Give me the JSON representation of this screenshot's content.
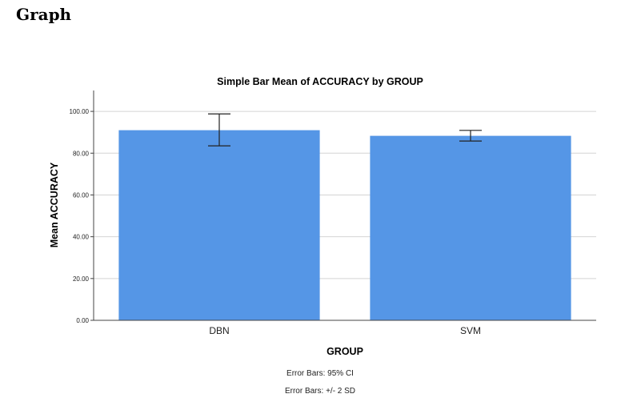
{
  "page": {
    "heading": "Graph"
  },
  "chart_data": {
    "type": "bar",
    "title": "Simple Bar Mean of ACCURACY by GROUP",
    "xlabel": "GROUP",
    "ylabel": "Mean ACCURACY",
    "categories": [
      "DBN",
      "SVM"
    ],
    "values": [
      91.0,
      88.3
    ],
    "error_bars": [
      {
        "low": 83.5,
        "high": 98.8
      },
      {
        "low": 85.8,
        "high": 90.9
      }
    ],
    "ylim": [
      0,
      110
    ],
    "yticks": [
      0,
      20,
      40,
      60,
      80,
      100
    ],
    "ytick_labels": [
      "0.00",
      "20.00",
      "40.00",
      "60.00",
      "80.00",
      "100.00"
    ],
    "grid": true,
    "bar_color": "#5596e6",
    "footnotes": [
      "Error Bars: 95% CI",
      "Error Bars: +/- 2 SD"
    ]
  }
}
